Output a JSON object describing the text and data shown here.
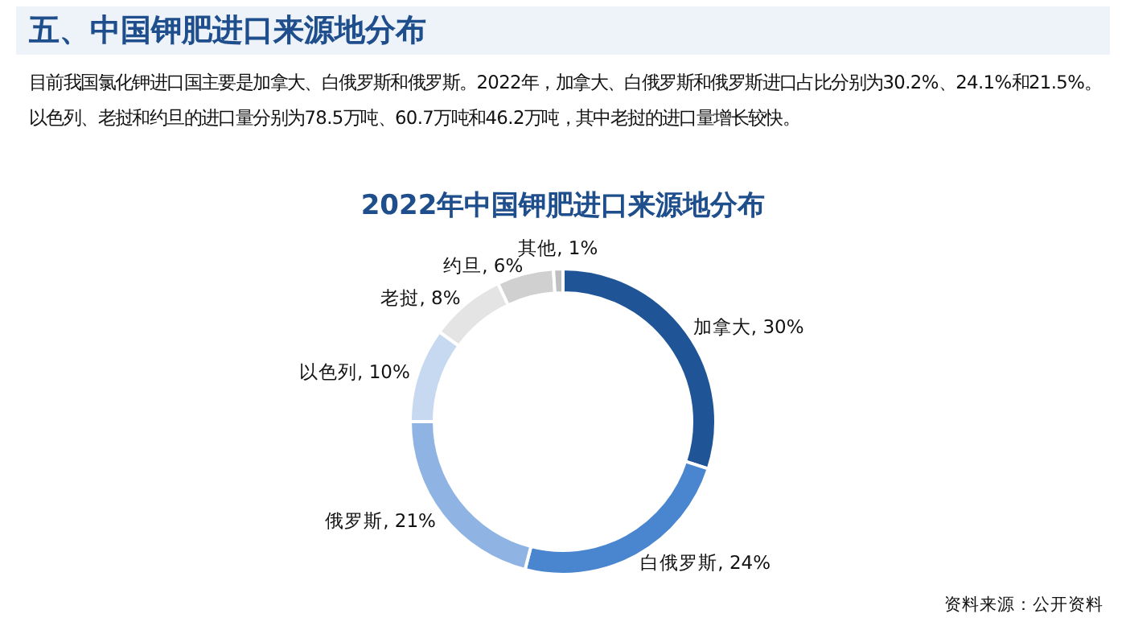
{
  "chart_data": {
    "type": "donut",
    "title": "2022年中国钾肥进口来源地分布",
    "categories": [
      "加拿大",
      "白俄罗斯",
      "俄罗斯",
      "以色列",
      "老挝",
      "约旦",
      "其他"
    ],
    "values": [
      30,
      24,
      21,
      10,
      8,
      6,
      1
    ],
    "value_labels": [
      "30%",
      "24%",
      "21%",
      "10%",
      "8%",
      "6%",
      "1%"
    ],
    "colors": [
      "#1f5597",
      "#4a86cf",
      "#8fb4e3",
      "#c6d9f1",
      "#e4e4e4",
      "#d0d0d0",
      "#bfbfbf"
    ],
    "annotations": [
      "五、中国钾肥进口来源地分布",
      "目前我国氯化钾进口国主要是加拿大、白俄罗斯和俄罗斯。2022年，加拿大、白俄罗斯和俄罗斯进口占比分别为30.2%、24.1%和21.5%。以色列、老挝和约旦的进口量分别为78.5万吨、60.7万吨和46.2万吨，其中老挝的进口量增长较快。",
      "资料来源：公开资料"
    ]
  }
}
